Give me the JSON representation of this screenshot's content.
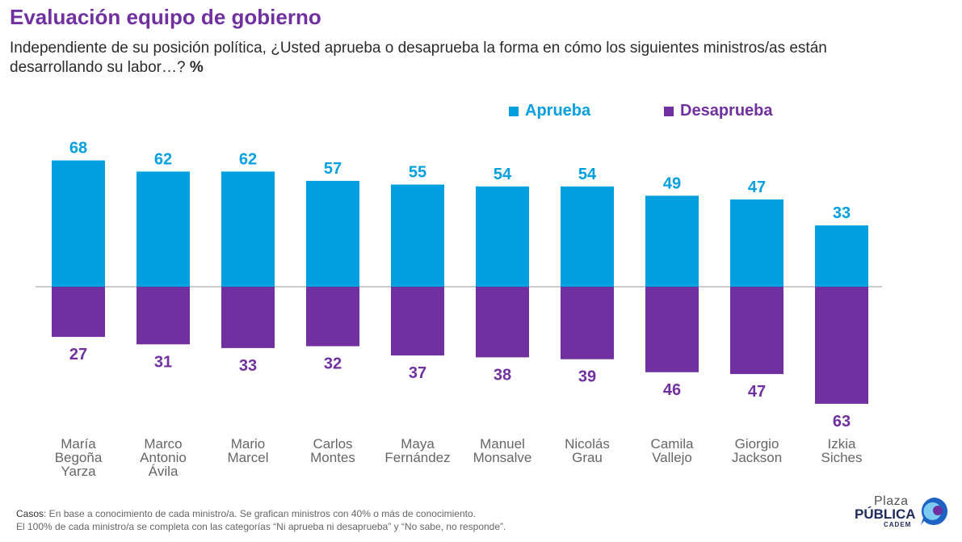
{
  "header": {
    "title": "Evaluación equipo de gobierno",
    "subtitle": "Independiente de su posición política, ¿Usted aprueba o desaprueba la forma en cómo los siguientes ministros/as están desarrollando su labor…?",
    "unit": "%"
  },
  "colors": {
    "aprueba": "#009fe0",
    "desaprueba": "#7030a0",
    "axis": "#999999"
  },
  "chart_data": {
    "type": "bar",
    "title": "Evaluación equipo de gobierno",
    "categories": [
      [
        "María",
        "Begoña",
        "Yarza"
      ],
      [
        "Marco",
        "Antonio",
        "Ávila"
      ],
      [
        "Mario",
        "Marcel"
      ],
      [
        "Carlos",
        "Montes"
      ],
      [
        "Maya",
        "Fernández"
      ],
      [
        "Manuel",
        "Monsalve"
      ],
      [
        "Nicolás",
        "Grau"
      ],
      [
        "Camila",
        "Vallejo"
      ],
      [
        "Giorgio",
        "Jackson"
      ],
      [
        "Izkia",
        "Siches"
      ]
    ],
    "series": [
      {
        "name": "Aprueba",
        "values": [
          68,
          62,
          62,
          57,
          55,
          54,
          54,
          49,
          47,
          33
        ],
        "direction": "up"
      },
      {
        "name": "Desaprueba",
        "values": [
          27,
          31,
          33,
          32,
          37,
          38,
          39,
          46,
          47,
          63
        ],
        "direction": "down"
      }
    ],
    "xlabel": "",
    "ylabel": "%",
    "legend": "top-right"
  },
  "footer": {
    "casos_label": "Casos",
    "casos_text": ": En base a conocimiento de cada ministro/a. Se grafican ministros con 40% o más de conocimiento.",
    "note": "El 100% de cada ministro/a se completa con las categorías “Ni aprueba ni desaprueba” y “No sabe, no responde”."
  },
  "logo": {
    "plaza": "Plaza",
    "publica": "PÚBLICA",
    "cadem": "CADEM"
  }
}
